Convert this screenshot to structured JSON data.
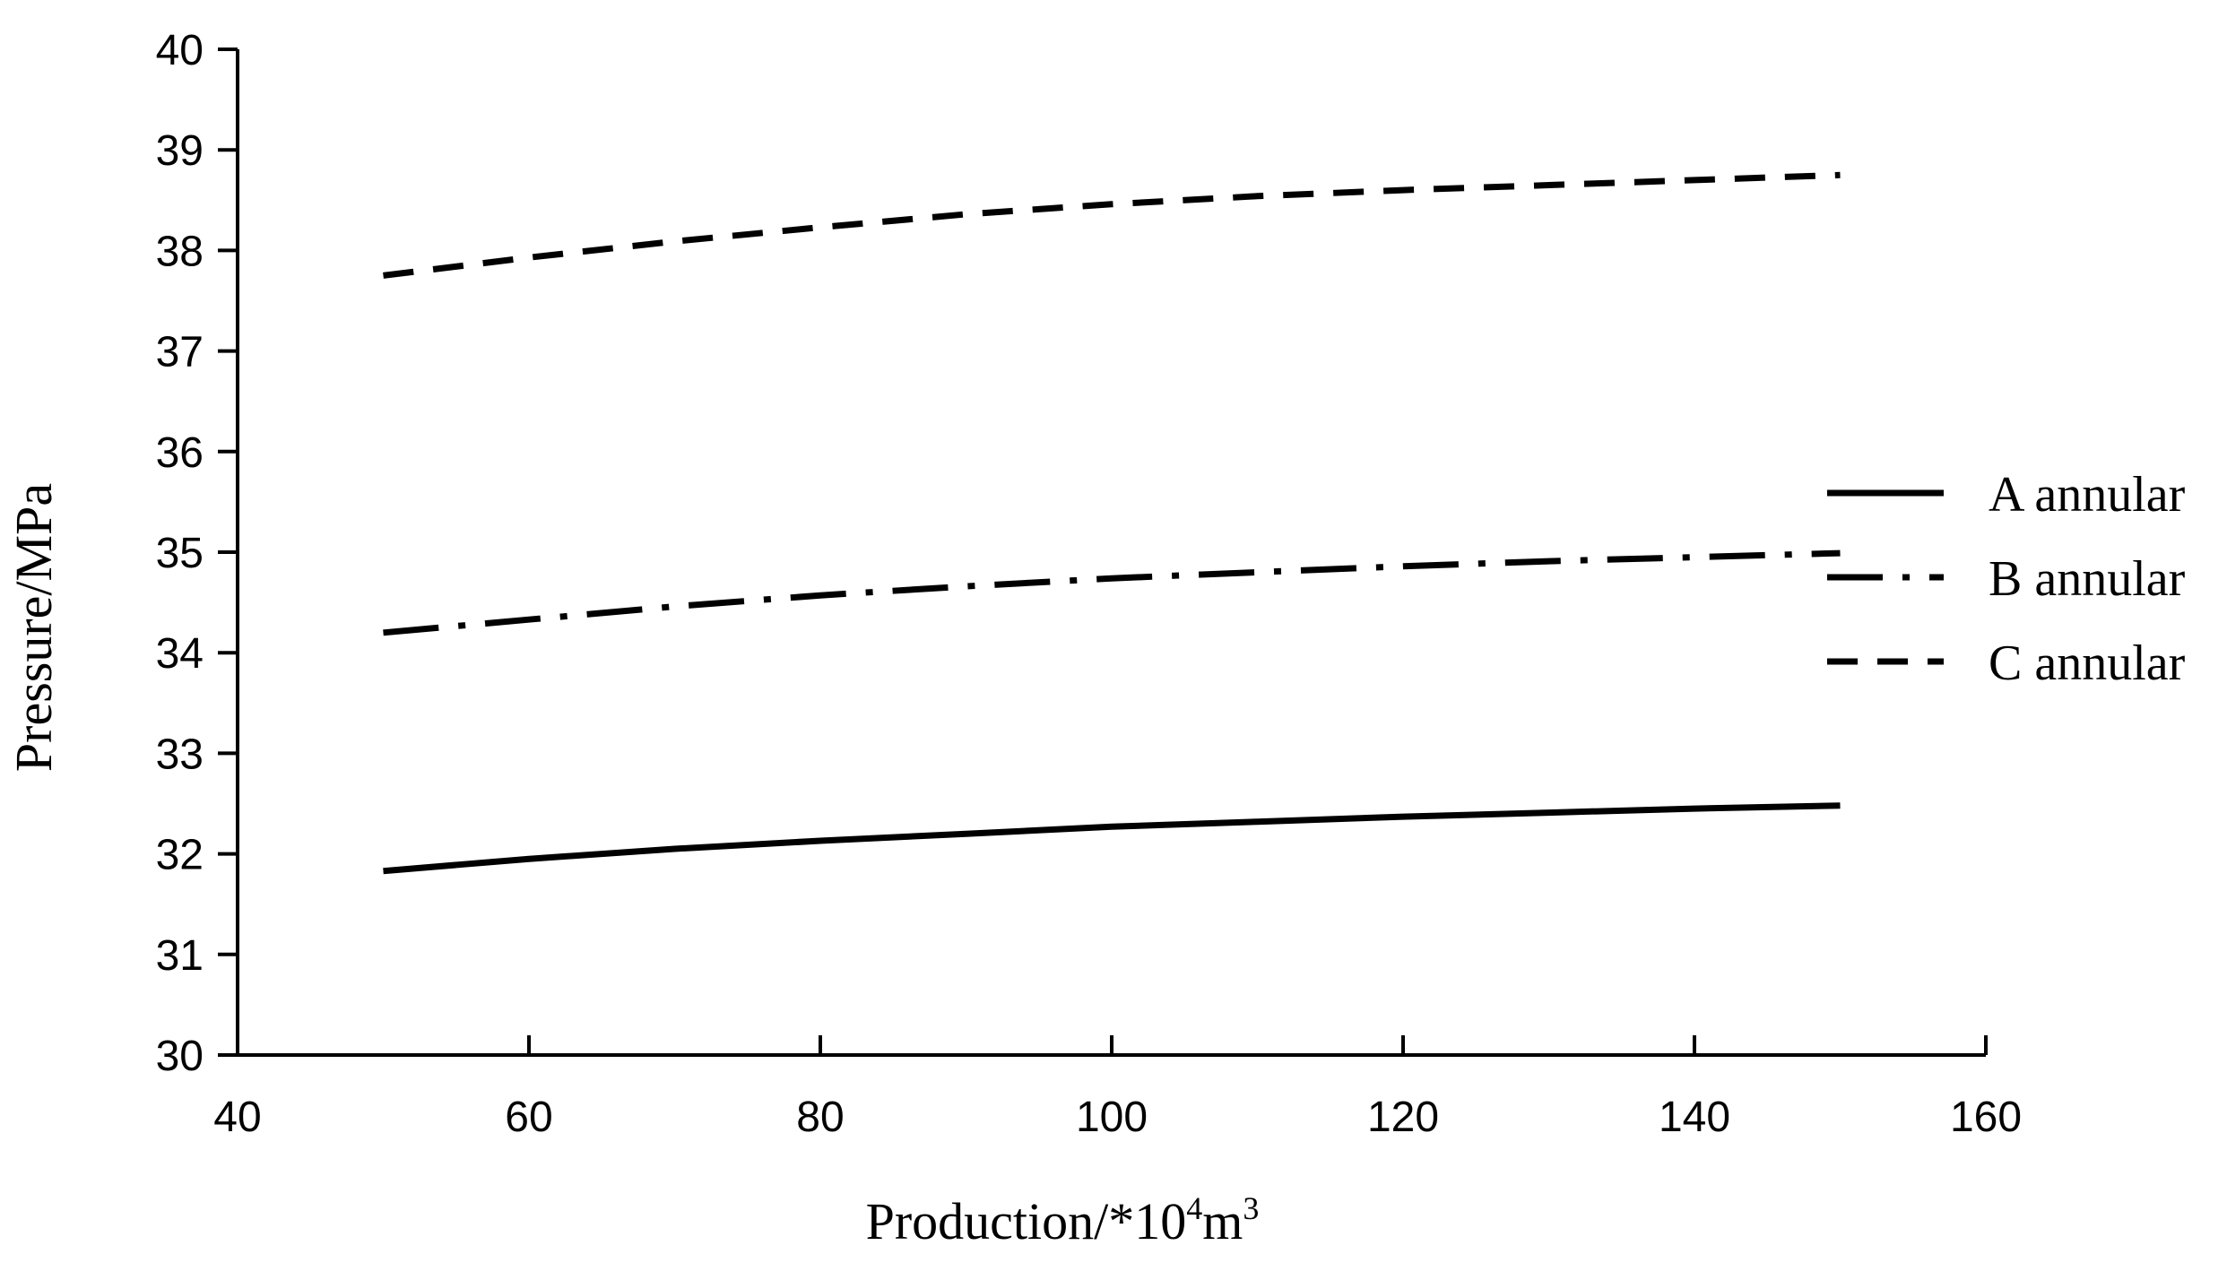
{
  "chart_data": {
    "type": "line",
    "xlabel": "Production/*10",
    "xlabel_sup1": "4",
    "xlabel_mid": "m",
    "xlabel_sup2": "3",
    "ylabel": "Pressure/MPa",
    "xlim": [
      40,
      160
    ],
    "ylim": [
      30,
      40
    ],
    "xticks": [
      40,
      60,
      80,
      100,
      120,
      140,
      160
    ],
    "yticks": [
      30,
      31,
      32,
      33,
      34,
      35,
      36,
      37,
      38,
      39,
      40
    ],
    "grid": false,
    "legend_position": "right",
    "x": [
      50,
      60,
      70,
      80,
      90,
      100,
      110,
      120,
      130,
      140,
      150
    ],
    "series": [
      {
        "name": "A annular",
        "style": "solid",
        "color": "#000000",
        "values": [
          31.83,
          31.95,
          32.05,
          32.13,
          32.2,
          32.27,
          32.32,
          32.37,
          32.41,
          32.45,
          32.48
        ]
      },
      {
        "name": "B annular",
        "style": "dash-dot",
        "color": "#000000",
        "values": [
          34.2,
          34.33,
          34.46,
          34.57,
          34.66,
          34.74,
          34.8,
          34.86,
          34.91,
          34.95,
          34.99
        ]
      },
      {
        "name": "C annular",
        "style": "dashed",
        "color": "#000000",
        "values": [
          37.75,
          37.93,
          38.09,
          38.23,
          38.36,
          38.46,
          38.54,
          38.6,
          38.65,
          38.7,
          38.75
        ]
      }
    ]
  }
}
